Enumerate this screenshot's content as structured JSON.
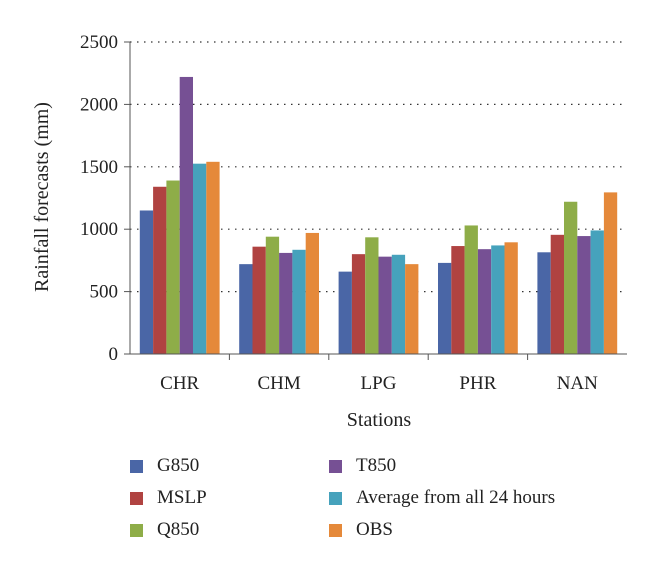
{
  "chart_data": {
    "type": "bar",
    "xlabel": "Stations",
    "ylabel": "Rainfall forecasts (mm)",
    "ylim": [
      0,
      2500
    ],
    "yticks": [
      0,
      500,
      1000,
      1500,
      2000,
      2500
    ],
    "grid": "horizontal-dotted",
    "legend_position": "bottom",
    "categories": [
      "CHR",
      "CHM",
      "LPG",
      "PHR",
      "NAN"
    ],
    "series": [
      {
        "name": "G850",
        "color": "#4A66A6",
        "values": [
          1150,
          720,
          660,
          730,
          815
        ]
      },
      {
        "name": "MSLP",
        "color": "#B04341",
        "values": [
          1340,
          860,
          800,
          865,
          955
        ]
      },
      {
        "name": "Q850",
        "color": "#8EAD48",
        "values": [
          1390,
          940,
          935,
          1030,
          1220
        ]
      },
      {
        "name": "T850",
        "color": "#765094",
        "values": [
          2220,
          810,
          780,
          840,
          945
        ]
      },
      {
        "name": "Average from all 24 hours",
        "color": "#46A2BC",
        "values": [
          1525,
          835,
          795,
          870,
          990
        ]
      },
      {
        "name": "OBS",
        "color": "#E5893A",
        "values": [
          1540,
          970,
          720,
          895,
          1295
        ]
      }
    ]
  }
}
